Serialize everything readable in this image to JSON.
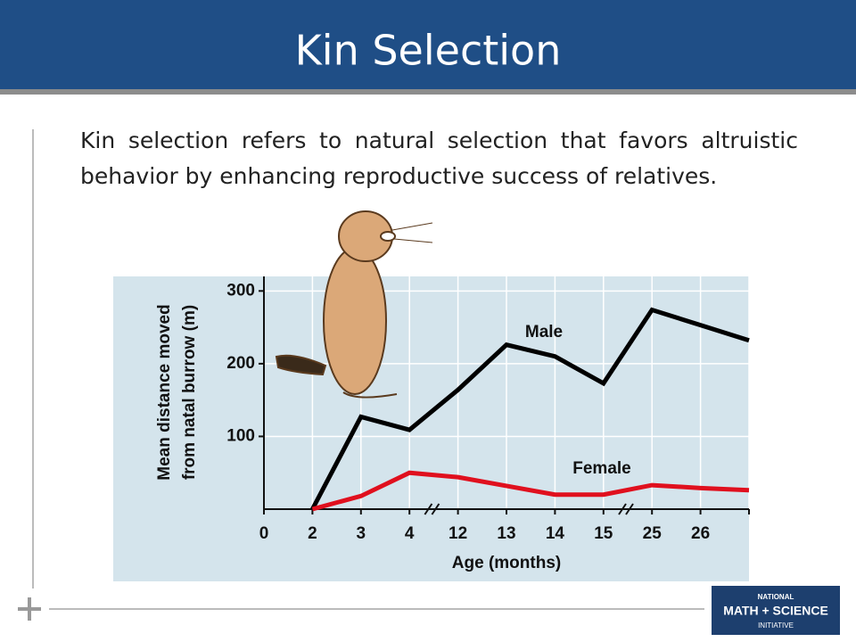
{
  "slide": {
    "title": "Kin Selection",
    "body": "Kin selection refers to natural selection that favors altruistic behavior by enhancing reproductive success of relatives.",
    "logo": {
      "line1": "NATIONAL",
      "line2": "MATH + SCIENCE",
      "line3": "INITIATIVE"
    }
  },
  "chart_data": {
    "type": "line",
    "xlabel": "Age (months)",
    "ylabel": [
      "Mean distance moved",
      "from natal burrow (m)"
    ],
    "categories": [
      "0",
      "2",
      "3",
      "4",
      "12",
      "13",
      "14",
      "15",
      "25",
      "26",
      null
    ],
    "series": [
      {
        "name": "Male",
        "color": "#000000",
        "values": [
          null,
          0,
          127,
          109,
          164,
          226,
          210,
          173,
          274,
          253,
          232
        ]
      },
      {
        "name": "Female",
        "color": "#e0101e",
        "values": [
          null,
          0,
          18,
          50,
          44,
          32,
          20,
          20,
          33,
          29,
          26
        ]
      }
    ],
    "ylim": [
      0,
      320
    ],
    "yticks": [
      100,
      200,
      300
    ],
    "grid": true
  }
}
